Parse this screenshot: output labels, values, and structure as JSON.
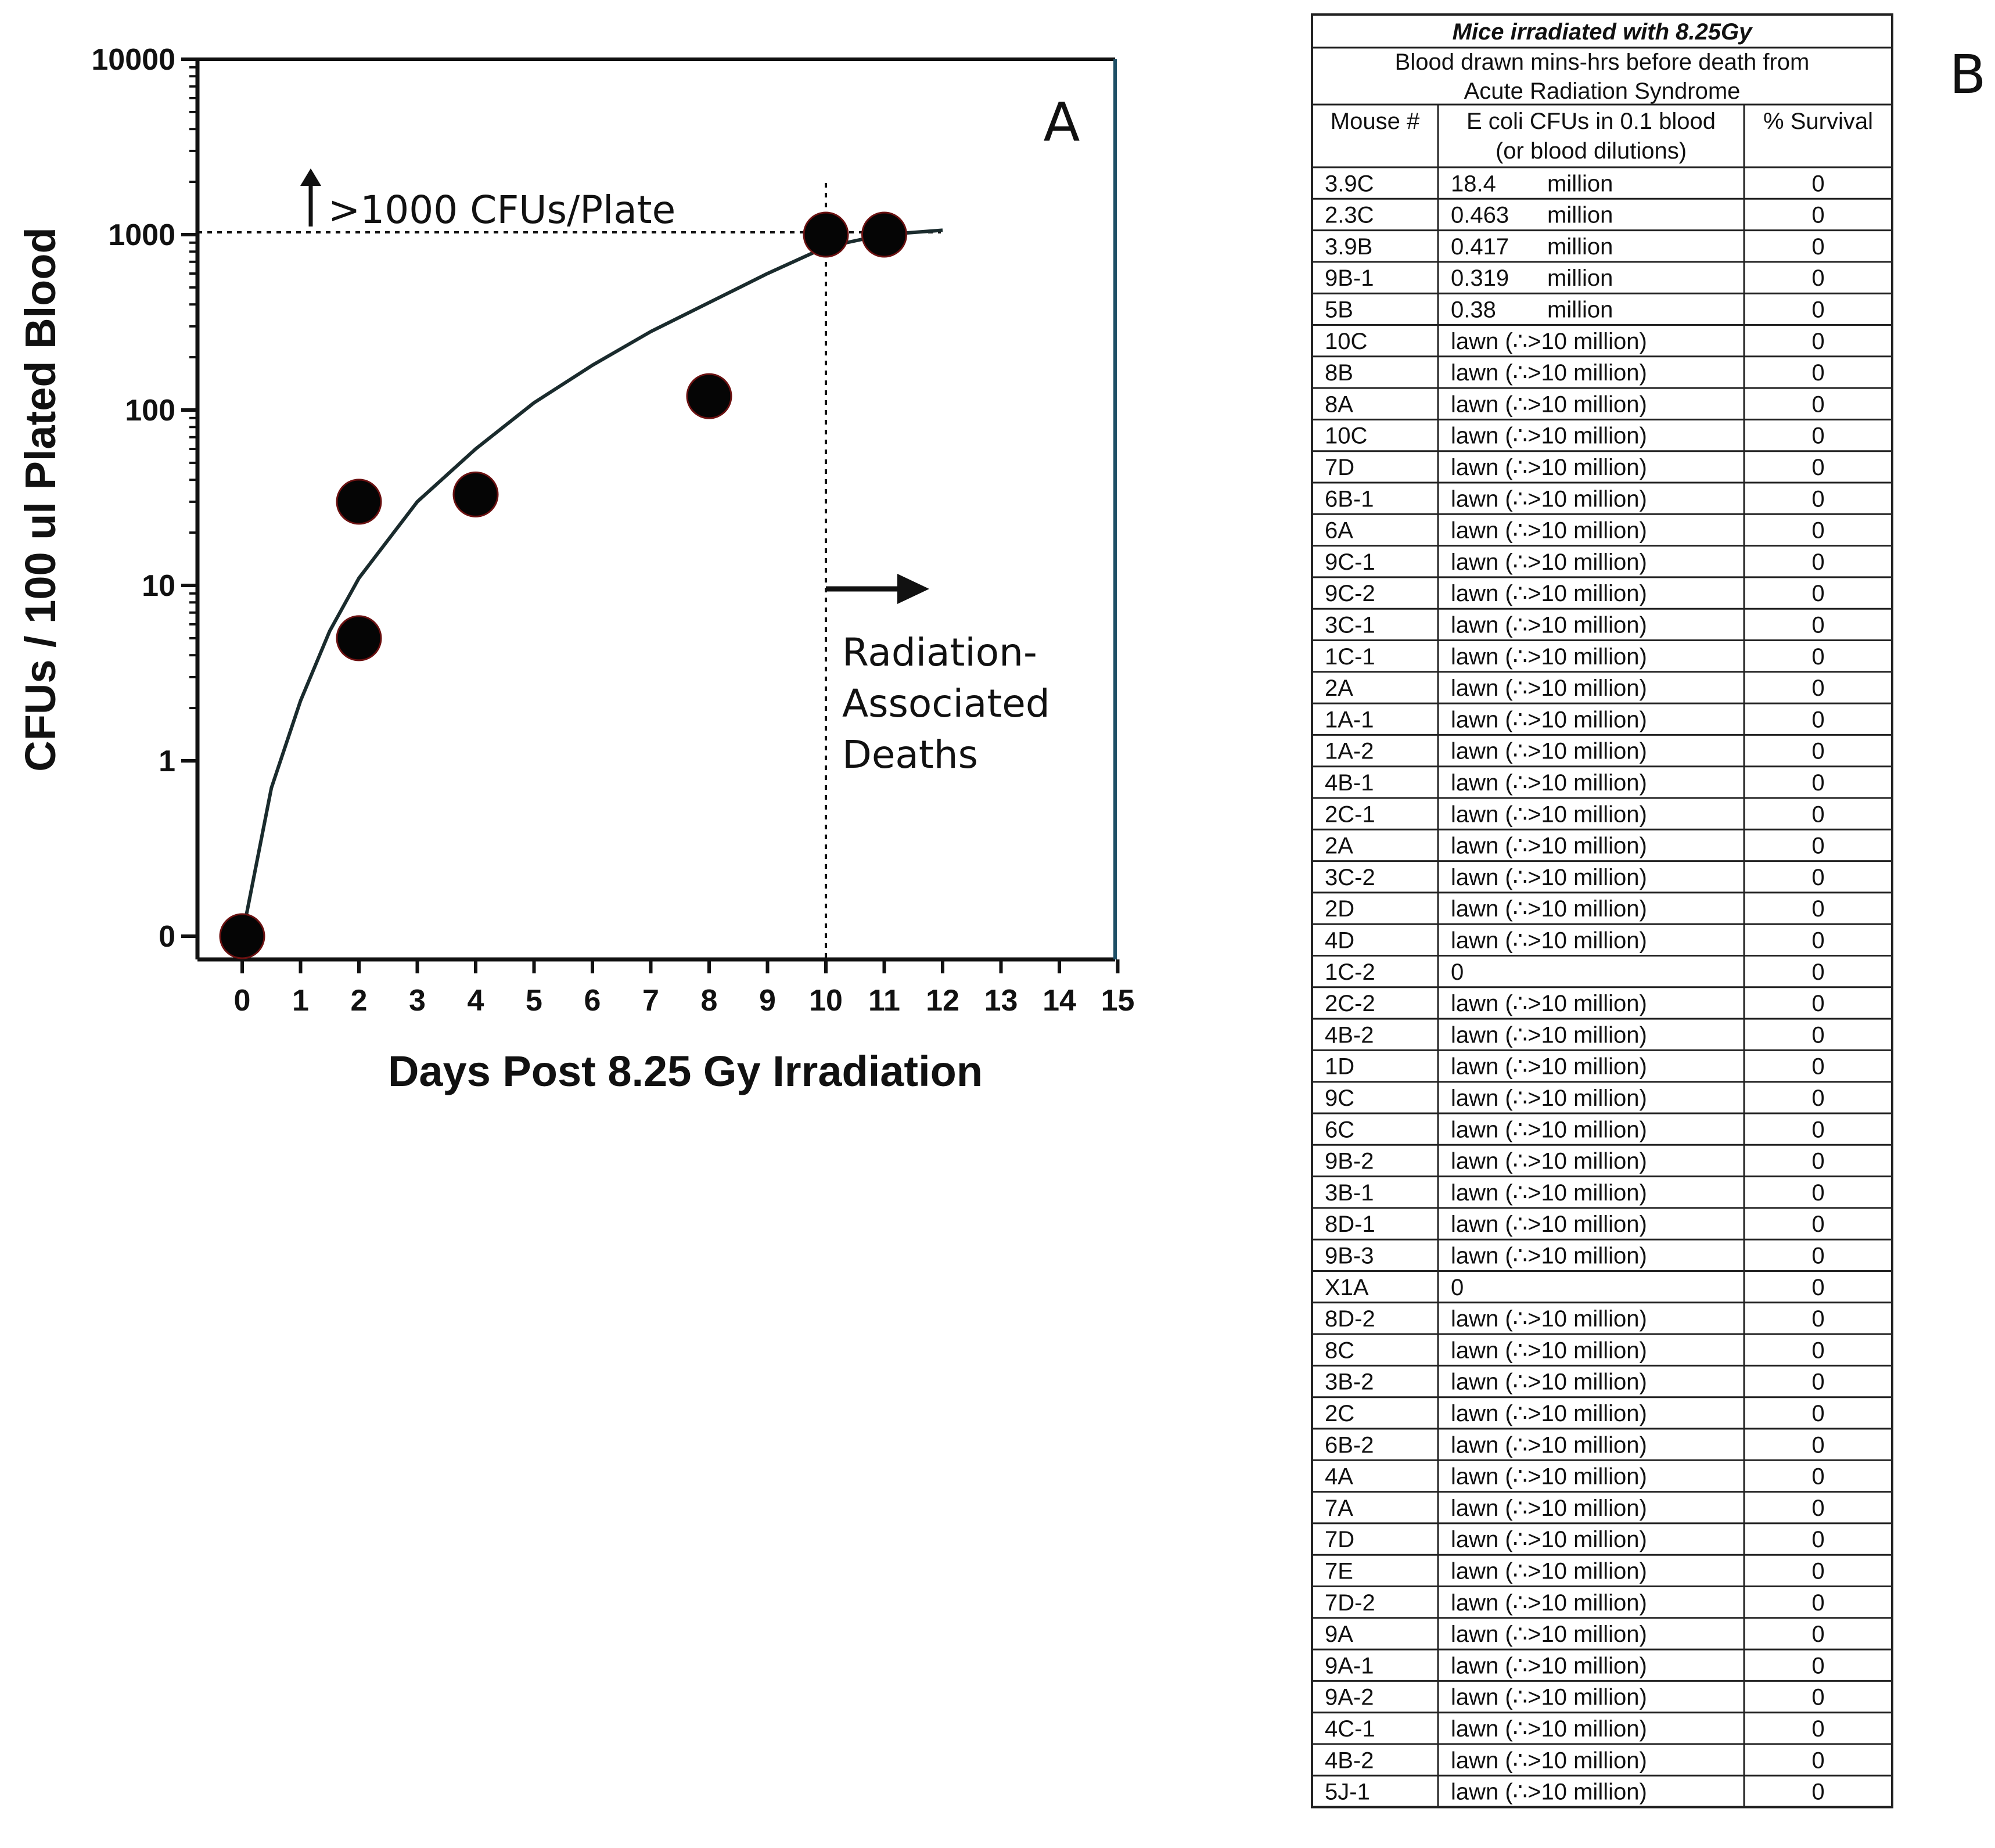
{
  "chart_data": [
    {
      "type": "scatter",
      "panel_label": "A",
      "ylabel": "CFUs / 100 ul Plated Blood",
      "xlabel": "Days Post 8.25 Gy Irradiation",
      "x_ticks": [
        "0",
        "1",
        "2",
        "3",
        "4",
        "5",
        "6",
        "7",
        "8",
        "9",
        "10",
        "11",
        "12",
        "13",
        "14",
        "15"
      ],
      "y_ticks": [
        "0",
        "1",
        "10",
        "100",
        "1000",
        "10000"
      ],
      "xlim": [
        0,
        15
      ],
      "ylim": [
        0,
        10000
      ],
      "y_scale": "log",
      "points": [
        {
          "x": 0,
          "y": 0
        },
        {
          "x": 2,
          "y": 30
        },
        {
          "x": 2,
          "y": 5
        },
        {
          "x": 4,
          "y": 33
        },
        {
          "x": 8,
          "y": 120
        },
        {
          "x": 10,
          "y": 1000
        },
        {
          "x": 11,
          "y": 1000
        }
      ],
      "fit_curve": [
        {
          "x": 0,
          "y": 0
        },
        {
          "x": 0.5,
          "y": 0.7
        },
        {
          "x": 1,
          "y": 2.2
        },
        {
          "x": 1.5,
          "y": 5.5
        },
        {
          "x": 2,
          "y": 11
        },
        {
          "x": 3,
          "y": 30
        },
        {
          "x": 4,
          "y": 60
        },
        {
          "x": 5,
          "y": 110
        },
        {
          "x": 6,
          "y": 180
        },
        {
          "x": 7,
          "y": 280
        },
        {
          "x": 8,
          "y": 410
        },
        {
          "x": 9,
          "y": 600
        },
        {
          "x": 10,
          "y": 850
        },
        {
          "x": 11,
          "y": 1000
        },
        {
          "x": 12,
          "y": 1060
        }
      ],
      "threshold_y": 1000,
      "threshold_label": ">1000 CFUs/Plate",
      "death_day": 10,
      "death_label_lines": [
        "Radiation-",
        "Associated",
        "Deaths"
      ]
    }
  ],
  "table": {
    "panel_label": "B",
    "title": "Mice irradiated with 8.25Gy",
    "subtitle_lines": [
      "Blood drawn mins-hrs before death from",
      "Acute Radiation Syndrome"
    ],
    "headers": [
      "Mouse #",
      "E coli CFUs in 0.1 blood",
      "% Survival"
    ],
    "header2_line2": "(or blood dilutions)",
    "rows": [
      [
        "3.9C",
        "18.4",
        "million",
        "0"
      ],
      [
        "2.3C",
        "0.463",
        "million",
        "0"
      ],
      [
        "3.9B",
        "0.417",
        "million",
        "0"
      ],
      [
        "9B-1",
        "0.319",
        "million",
        "0"
      ],
      [
        "5B",
        "0.38",
        "million",
        "0"
      ],
      [
        "10C",
        "lawn (∴>10 million)",
        "",
        "0"
      ],
      [
        "8B",
        "lawn (∴>10 million)",
        "",
        "0"
      ],
      [
        "8A",
        "lawn (∴>10 million)",
        "",
        "0"
      ],
      [
        "10C",
        "lawn (∴>10 million)",
        "",
        "0"
      ],
      [
        "7D",
        "lawn (∴>10 million)",
        "",
        "0"
      ],
      [
        "6B-1",
        "lawn (∴>10 million)",
        "",
        "0"
      ],
      [
        "6A",
        "lawn (∴>10 million)",
        "",
        "0"
      ],
      [
        "9C-1",
        "lawn (∴>10 million)",
        "",
        "0"
      ],
      [
        "9C-2",
        "lawn (∴>10 million)",
        "",
        "0"
      ],
      [
        "3C-1",
        "lawn (∴>10 million)",
        "",
        "0"
      ],
      [
        "1C-1",
        "lawn (∴>10 million)",
        "",
        "0"
      ],
      [
        "2A",
        "lawn (∴>10 million)",
        "",
        "0"
      ],
      [
        "1A-1",
        "lawn (∴>10 million)",
        "",
        "0"
      ],
      [
        "1A-2",
        "lawn (∴>10 million)",
        "",
        "0"
      ],
      [
        "4B-1",
        "lawn (∴>10 million)",
        "",
        "0"
      ],
      [
        "2C-1",
        "lawn (∴>10 million)",
        "",
        "0"
      ],
      [
        "2A",
        "lawn (∴>10 million)",
        "",
        "0"
      ],
      [
        "3C-2",
        "lawn (∴>10 million)",
        "",
        "0"
      ],
      [
        "2D",
        "lawn (∴>10 million)",
        "",
        "0"
      ],
      [
        "4D",
        "lawn (∴>10 million)",
        "",
        "0"
      ],
      [
        "1C-2",
        "0",
        "",
        "0"
      ],
      [
        "2C-2",
        "lawn (∴>10 million)",
        "",
        "0"
      ],
      [
        "4B-2",
        "lawn (∴>10 million)",
        "",
        "0"
      ],
      [
        "1D",
        "lawn (∴>10 million)",
        "",
        "0"
      ],
      [
        "9C",
        "lawn (∴>10 million)",
        "",
        "0"
      ],
      [
        "6C",
        "lawn (∴>10 million)",
        "",
        "0"
      ],
      [
        "9B-2",
        "lawn (∴>10 million)",
        "",
        "0"
      ],
      [
        "3B-1",
        "lawn (∴>10 million)",
        "",
        "0"
      ],
      [
        "8D-1",
        "lawn (∴>10 million)",
        "",
        "0"
      ],
      [
        "9B-3",
        "lawn (∴>10 million)",
        "",
        "0"
      ],
      [
        "X1A",
        "0",
        "",
        "0"
      ],
      [
        "8D-2",
        "lawn (∴>10 million)",
        "",
        "0"
      ],
      [
        "8C",
        "lawn (∴>10 million)",
        "",
        "0"
      ],
      [
        "3B-2",
        "lawn (∴>10 million)",
        "",
        "0"
      ],
      [
        "2C",
        "lawn (∴>10 million)",
        "",
        "0"
      ],
      [
        "6B-2",
        "lawn (∴>10 million)",
        "",
        "0"
      ],
      [
        "4A",
        "lawn (∴>10 million)",
        "",
        "0"
      ],
      [
        "7A",
        "lawn (∴>10 million)",
        "",
        "0"
      ],
      [
        "7D",
        "lawn (∴>10 million)",
        "",
        "0"
      ],
      [
        "7E",
        "lawn (∴>10 million)",
        "",
        "0"
      ],
      [
        "7D-2",
        "lawn (∴>10 million)",
        "",
        "0"
      ],
      [
        "9A",
        "lawn (∴>10 million)",
        "",
        "0"
      ],
      [
        "9A-1",
        "lawn (∴>10 million)",
        "",
        "0"
      ],
      [
        "9A-2",
        "lawn (∴>10 million)",
        "",
        "0"
      ],
      [
        "4C-1",
        "lawn (∴>10 million)",
        "",
        "0"
      ],
      [
        "4B-2",
        "lawn (∴>10 million)",
        "",
        "0"
      ],
      [
        "5J-1",
        "lawn (∴>10 million)",
        "",
        "0"
      ]
    ]
  }
}
